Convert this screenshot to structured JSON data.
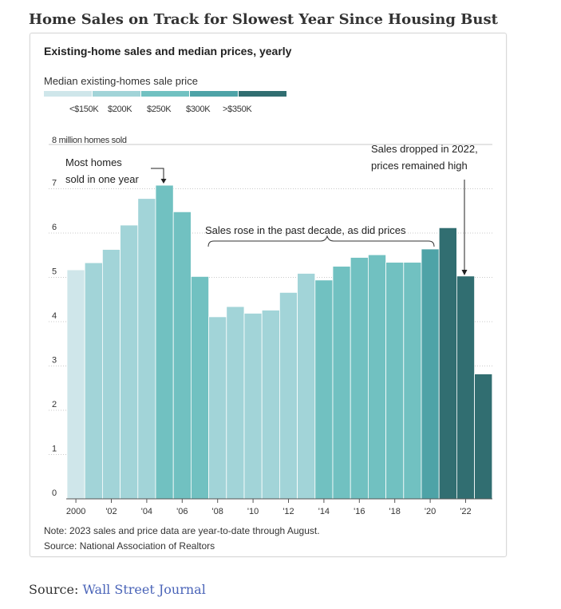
{
  "page": {
    "title": "Home Sales on Track for Slowest Year Since Housing Bust",
    "source_label": "Source:",
    "source_link": "Wall Street Journal"
  },
  "chart_data": {
    "type": "bar",
    "title": "Existing-home sales and median prices, yearly",
    "y_unit_label": "8 million homes sold",
    "ylim": [
      0,
      8
    ],
    "y_ticks": [
      "0",
      "1",
      "2",
      "3",
      "4",
      "5",
      "6",
      "7"
    ],
    "x_tick_labels": [
      "2000",
      "'02",
      "'04",
      "'06",
      "'08",
      "'10",
      "'12",
      "'14",
      "'16",
      "'18",
      "'20",
      "'22"
    ],
    "x_tick_years": [
      2000,
      2002,
      2004,
      2006,
      2008,
      2010,
      2012,
      2014,
      2016,
      2018,
      2020,
      2022
    ],
    "years": [
      2000,
      2001,
      2002,
      2003,
      2004,
      2005,
      2006,
      2007,
      2008,
      2009,
      2010,
      2011,
      2012,
      2013,
      2014,
      2015,
      2016,
      2017,
      2018,
      2019,
      2020,
      2021,
      2022,
      2023
    ],
    "values": [
      5.17,
      5.33,
      5.63,
      6.18,
      6.78,
      7.08,
      6.48,
      5.02,
      4.11,
      4.34,
      4.19,
      4.26,
      4.66,
      5.09,
      4.94,
      5.25,
      5.45,
      5.51,
      5.34,
      5.34,
      5.64,
      6.12,
      5.03,
      2.82
    ],
    "price_tier": [
      0,
      1,
      1,
      1,
      1,
      2,
      2,
      2,
      1,
      1,
      1,
      1,
      1,
      1,
      2,
      2,
      2,
      2,
      2,
      2,
      3,
      4,
      4,
      4
    ],
    "legend": {
      "title": "Median existing-homes sale price",
      "labels": [
        "<$150K",
        "$200K",
        "$250K",
        "$300K",
        ">$350K"
      ],
      "colors": [
        "#cfe6ea",
        "#a2d4d8",
        "#71c1c1",
        "#4ea3a7",
        "#316e71"
      ]
    },
    "annotations": {
      "peak_line1": "Most homes",
      "peak_line2": "sold in one year",
      "decade": "Sales rose in the past decade, as did prices",
      "drop_line1": "Sales dropped in 2022,",
      "drop_line2": "prices remained high"
    },
    "note": "Note: 2023 sales and price data are year-to-date through August.",
    "source": "Source: National Association of Realtors",
    "grid": true
  }
}
